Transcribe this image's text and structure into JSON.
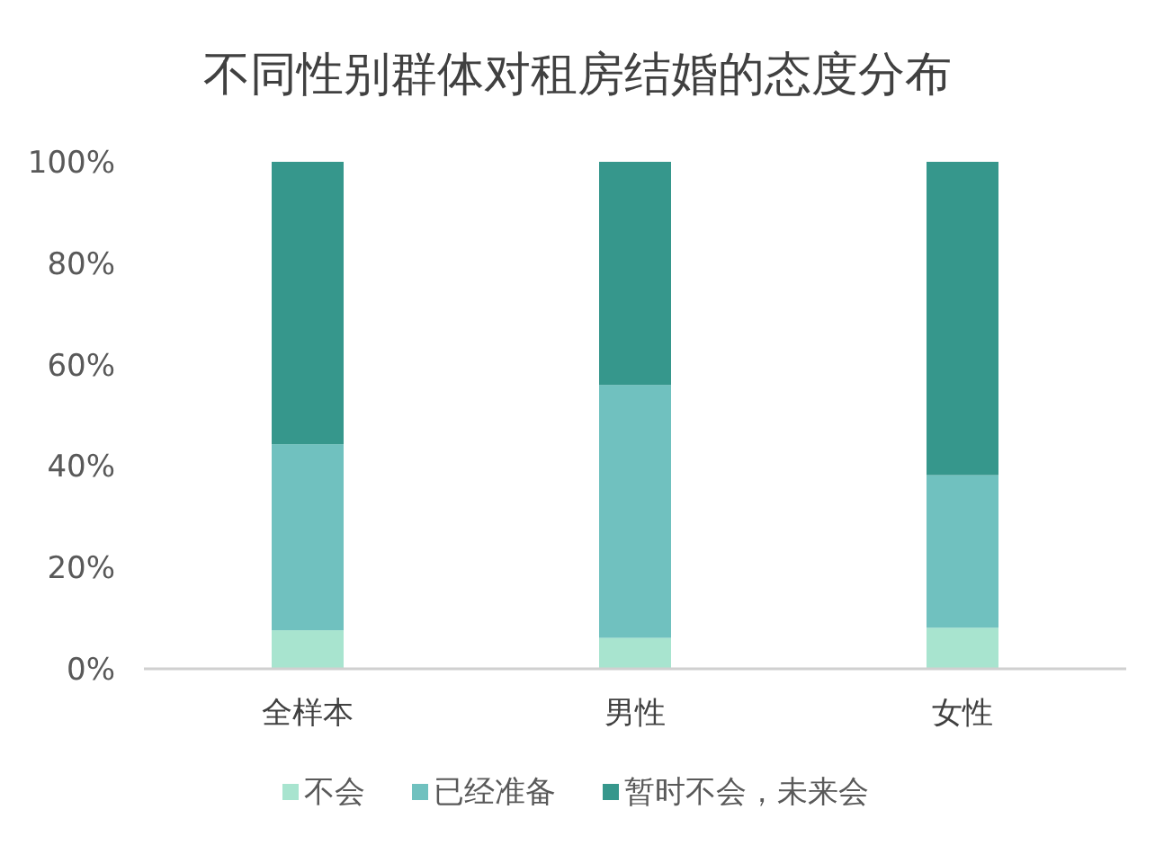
{
  "chart_data": {
    "type": "bar",
    "title": "不同性别群体对租房结婚的态度分布",
    "categories": [
      "全样本",
      "男性",
      "女性"
    ],
    "stacked": true,
    "ylim": [
      0,
      100
    ],
    "yticks": [
      {
        "value": 0,
        "label": "0%"
      },
      {
        "value": 20,
        "label": "20%"
      },
      {
        "value": 40,
        "label": "40%"
      },
      {
        "value": 60,
        "label": "60%"
      },
      {
        "value": 80,
        "label": "80%"
      },
      {
        "value": 100,
        "label": "100%"
      }
    ],
    "grid": false,
    "legend": "bottom",
    "series": [
      {
        "name": "不会",
        "color": "#a8e4cf",
        "values": [
          7.6,
          6.1,
          8.1
        ]
      },
      {
        "name": "已经准备",
        "color": "#70c1bf",
        "values": [
          36.7,
          49.9,
          30.1
        ]
      },
      {
        "name": "暂时不会，未来会",
        "color": "#36978c",
        "values": [
          55.7,
          44.0,
          61.8
        ]
      }
    ]
  }
}
